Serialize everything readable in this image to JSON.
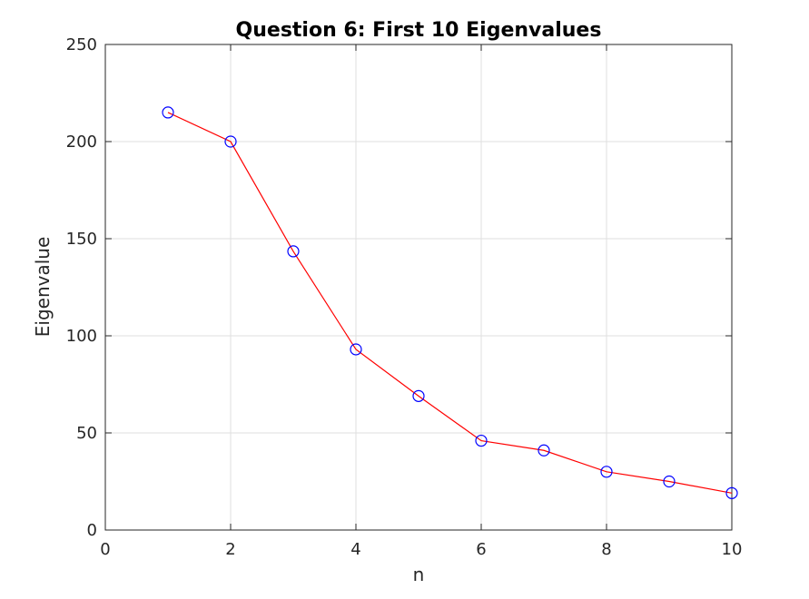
{
  "chart_data": {
    "type": "line",
    "title": "Question 6: First 10 Eigenvalues",
    "xlabel": "n",
    "ylabel": "Eigenvalue",
    "xlim": [
      0,
      10
    ],
    "ylim": [
      0,
      250
    ],
    "xticks": [
      0,
      2,
      4,
      6,
      8,
      10
    ],
    "yticks": [
      0,
      50,
      100,
      150,
      200,
      250
    ],
    "grid": true,
    "line_color": "#ff0000",
    "marker": "circle",
    "marker_color": "#0000ff",
    "x": [
      1,
      2,
      3,
      4,
      5,
      6,
      7,
      8,
      9,
      10
    ],
    "series": [
      {
        "values": [
          215,
          200,
          143.5,
          93,
          69,
          46,
          41,
          30,
          25,
          19
        ]
      }
    ]
  }
}
